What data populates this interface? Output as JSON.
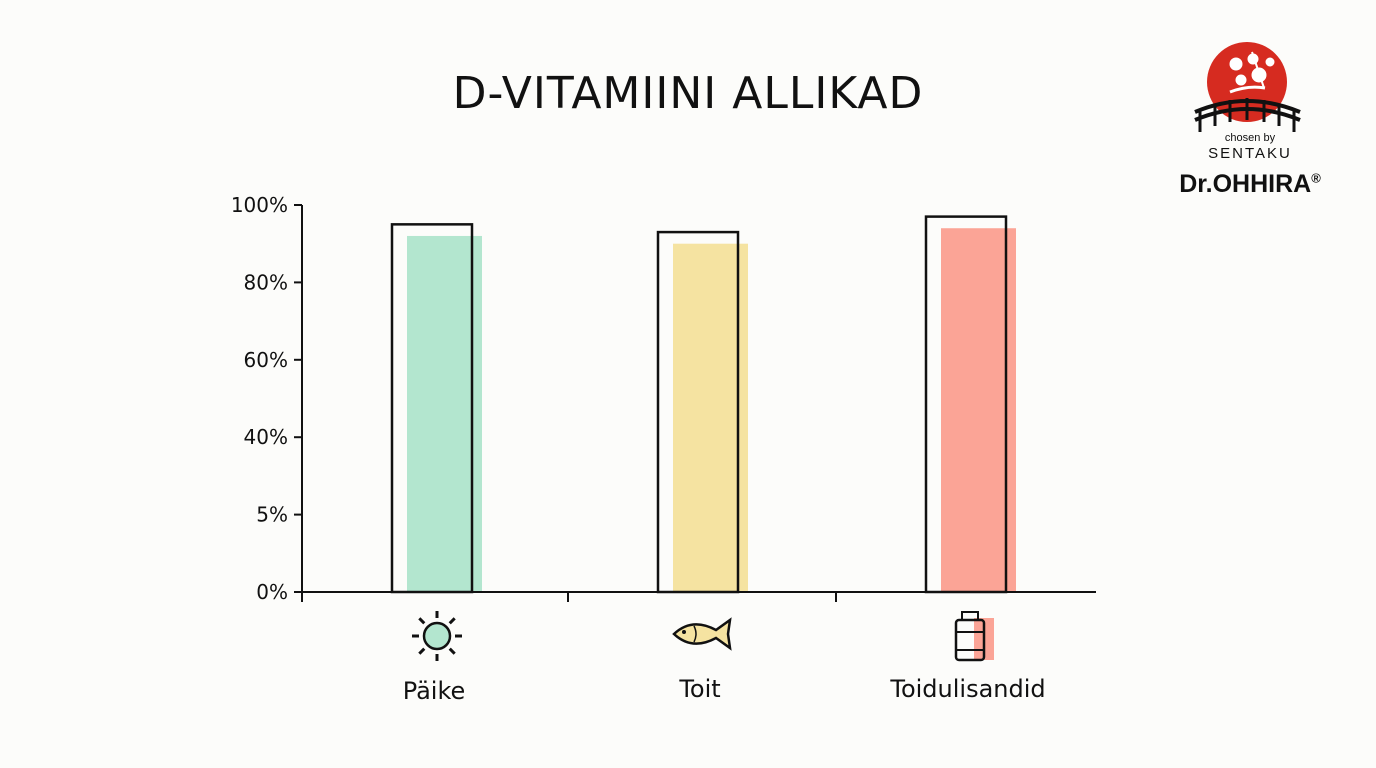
{
  "chart_data": {
    "type": "bar",
    "title": "D-VITAMIINI ALLIKAD",
    "xlabel": "",
    "ylabel": "",
    "ytick_labels": [
      "0%",
      "5%",
      "40%",
      "60%",
      "80%",
      "100%"
    ],
    "categories": [
      "Päike",
      "Toit",
      "Toidulisandid"
    ],
    "category_icons": [
      "sun-icon",
      "fish-icon",
      "supplement-bottle-icon"
    ],
    "values": [
      92,
      90,
      94
    ],
    "outline_values": [
      95,
      93,
      97
    ],
    "colors": [
      "#b3e6cf",
      "#f5e3a1",
      "#fba496"
    ],
    "grid": false,
    "legend": "none"
  },
  "logo": {
    "chosen_by": "chosen by",
    "sentaku": "SENTAKU",
    "brand": "Dr.OHHIRA",
    "registered_mark": "®",
    "emblem_color": "#d62b20"
  }
}
